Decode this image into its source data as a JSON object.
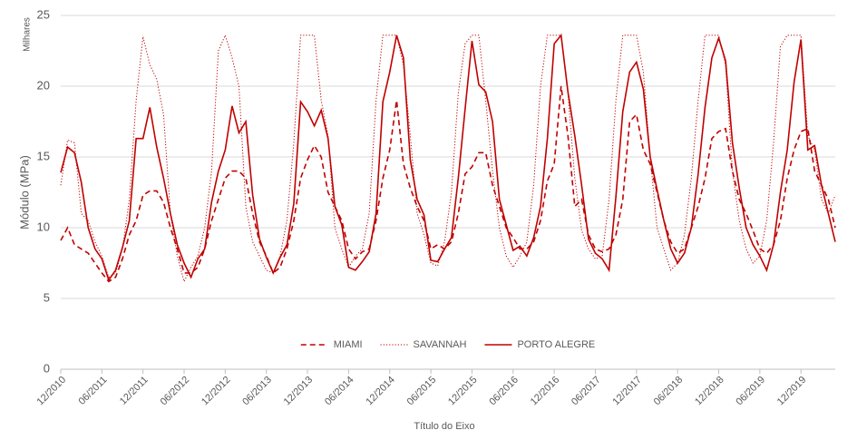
{
  "chart_data": {
    "type": "line",
    "y_unit_label": "Milhares",
    "y_axis_label": "Módulo (MPa)",
    "x_axis_label": "Título do Eixo",
    "categories": [
      "12/2010",
      null,
      null,
      null,
      null,
      null,
      "06/2011",
      null,
      null,
      null,
      null,
      null,
      "12/2011",
      null,
      null,
      null,
      null,
      null,
      "06/2012",
      null,
      null,
      null,
      null,
      null,
      "12/2012",
      null,
      null,
      null,
      null,
      null,
      "06/2013",
      null,
      null,
      null,
      null,
      null,
      "12/2013",
      null,
      null,
      null,
      null,
      null,
      "06/2014",
      null,
      null,
      null,
      null,
      null,
      "12/2014",
      null,
      null,
      null,
      null,
      null,
      "06/2015",
      null,
      null,
      null,
      null,
      null,
      "12/2015",
      null,
      null,
      null,
      null,
      null,
      "06/2016",
      null,
      null,
      null,
      null,
      null,
      "12/2016",
      null,
      null,
      null,
      null,
      null,
      "06/2017",
      null,
      null,
      null,
      null,
      null,
      "12/2017",
      null,
      null,
      null,
      null,
      null,
      "06/2018",
      null,
      null,
      null,
      null,
      null,
      "12/2018",
      null,
      null,
      null,
      null,
      null,
      "06/2019",
      null,
      null,
      null,
      null,
      null,
      "12/2019",
      null,
      null,
      null,
      null,
      null
    ],
    "series": [
      {
        "name": "MIAMI",
        "color": "#c00000",
        "dash": "dashed",
        "values": [
          9.1,
          10.0,
          8.8,
          8.5,
          8.2,
          7.5,
          6.8,
          6.2,
          6.5,
          7.8,
          9.5,
          10.5,
          12.3,
          12.6,
          12.6,
          11.8,
          10.0,
          8.5,
          6.8,
          6.8,
          7.2,
          8.5,
          10.5,
          12.0,
          13.5,
          14.0,
          14.0,
          13.5,
          11.0,
          9.0,
          8.0,
          6.8,
          7.2,
          8.5,
          10.5,
          13.5,
          14.8,
          15.8,
          15.0,
          12.5,
          11.5,
          10.5,
          8.5,
          7.8,
          8.3,
          8.5,
          10.5,
          13.5,
          15.5,
          19.0,
          14.5,
          12.8,
          11.5,
          10.5,
          8.5,
          8.8,
          8.5,
          9.0,
          11.0,
          13.8,
          14.3,
          15.3,
          15.3,
          13.0,
          11.5,
          10.0,
          9.3,
          8.5,
          8.5,
          9.0,
          10.5,
          13.3,
          14.5,
          20.0,
          16.5,
          11.5,
          12.0,
          9.5,
          8.5,
          8.3,
          8.5,
          9.5,
          12.0,
          17.5,
          18.0,
          15.5,
          14.5,
          12.5,
          10.5,
          9.0,
          8.2,
          8.5,
          10.0,
          11.5,
          13.5,
          16.3,
          16.8,
          17.0,
          14.0,
          12.0,
          11.0,
          9.8,
          8.5,
          8.2,
          8.8,
          10.5,
          13.5,
          15.5,
          16.8,
          17.0,
          14.0,
          13.0,
          12.0,
          10.0
        ]
      },
      {
        "name": "SAVANNAH",
        "color": "#c00000",
        "dash": "dotted",
        "values": [
          13.0,
          16.2,
          16.0,
          11.0,
          10.5,
          9.0,
          8.0,
          6.5,
          6.8,
          8.5,
          12.0,
          19.0,
          23.5,
          21.5,
          20.5,
          18.0,
          11.0,
          8.0,
          6.2,
          7.2,
          8.0,
          10.0,
          14.0,
          22.5,
          23.6,
          22.0,
          20.0,
          11.5,
          9.0,
          8.0,
          7.0,
          6.8,
          8.0,
          10.5,
          16.0,
          23.6,
          23.6,
          23.6,
          19.0,
          16.5,
          10.0,
          8.5,
          7.2,
          8.0,
          8.5,
          11.0,
          19.0,
          23.6,
          23.6,
          23.6,
          21.5,
          16.5,
          11.0,
          9.5,
          7.5,
          7.3,
          9.0,
          12.5,
          19.5,
          23.0,
          23.6,
          23.6,
          19.0,
          14.0,
          10.0,
          8.0,
          7.2,
          8.0,
          9.0,
          13.0,
          20.0,
          23.6,
          23.6,
          23.6,
          19.5,
          13.5,
          9.8,
          8.5,
          7.8,
          8.0,
          12.0,
          19.0,
          23.6,
          23.6,
          23.6,
          21.0,
          15.0,
          10.0,
          8.5,
          7.0,
          7.5,
          9.5,
          13.5,
          19.0,
          23.6,
          23.6,
          23.6,
          21.5,
          14.0,
          10.5,
          8.5,
          7.5,
          8.0,
          10.5,
          16.0,
          22.8,
          23.6,
          23.6,
          23.6,
          16.5,
          15.5,
          12.0,
          11.0,
          12.3
        ]
      },
      {
        "name": "PORTO ALEGRE",
        "color": "#c00000",
        "dash": "solid",
        "values": [
          13.9,
          15.7,
          15.3,
          13.2,
          10.0,
          8.5,
          7.8,
          6.3,
          7.0,
          8.6,
          10.5,
          16.3,
          16.3,
          18.5,
          15.7,
          13.5,
          11.0,
          8.8,
          7.5,
          6.5,
          7.8,
          8.5,
          11.8,
          14.0,
          15.5,
          18.6,
          16.7,
          17.5,
          12.3,
          9.2,
          7.9,
          6.8,
          7.9,
          8.8,
          11.7,
          18.9,
          18.2,
          17.2,
          18.3,
          16.3,
          11.5,
          10.2,
          7.2,
          7.0,
          7.6,
          8.3,
          11.0,
          18.9,
          21.0,
          23.6,
          22.0,
          14.8,
          12.0,
          10.9,
          7.7,
          7.6,
          8.5,
          9.3,
          13.5,
          18.4,
          23.2,
          20.1,
          19.6,
          17.5,
          12.0,
          10.2,
          8.4,
          8.7,
          8.0,
          9.3,
          11.5,
          16.3,
          23.0,
          23.6,
          19.6,
          16.5,
          13.0,
          9.2,
          8.2,
          7.8,
          7.0,
          12.2,
          18.2,
          21.0,
          21.7,
          19.8,
          15.0,
          12.7,
          10.5,
          8.5,
          7.5,
          8.2,
          10.0,
          13.8,
          18.5,
          22.0,
          23.4,
          21.8,
          16.0,
          12.8,
          10.0,
          8.8,
          8.0,
          7.0,
          8.8,
          12.5,
          15.5,
          20.3,
          23.3,
          15.5,
          15.8,
          13.0,
          11.0,
          9.0
        ]
      }
    ],
    "ylim": [
      0,
      25
    ],
    "yticks": [
      0,
      5,
      10,
      15,
      20,
      25
    ],
    "grid": true,
    "legend": "bottom"
  }
}
